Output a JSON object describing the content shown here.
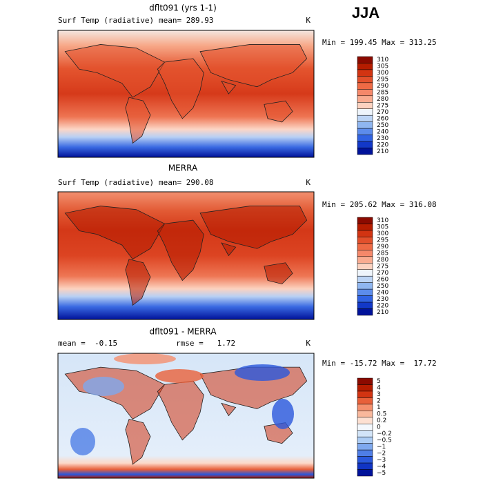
{
  "header": {
    "season": "JJA"
  },
  "panels": [
    {
      "title": "dflt091 (yrs 1-1)",
      "field": "Surf Temp (radiative)",
      "stat1": "mean= 289.93",
      "units": "K",
      "range": "Min = 199.45 Max = 313.25",
      "colorbar": {
        "labels": [
          "310",
          "305",
          "300",
          "295",
          "290",
          "285",
          "280",
          "275",
          "270",
          "260",
          "250",
          "240",
          "230",
          "220",
          "210"
        ],
        "colors": [
          "#8b0a00",
          "#b51c00",
          "#d23412",
          "#e2502c",
          "#ee6a45",
          "#f5886a",
          "#f9ab90",
          "#fcd2c0",
          "#eef4fb",
          "#bcd4f5",
          "#8fb6f0",
          "#5c8ceb",
          "#3062e2",
          "#1238c8",
          "#00129a"
        ]
      }
    },
    {
      "title": "MERRA",
      "field": "Surf Temp (radiative)",
      "stat1": "mean= 290.08",
      "units": "K",
      "range": "Min = 205.62 Max = 316.08",
      "colorbar": {
        "labels": [
          "310",
          "305",
          "300",
          "295",
          "290",
          "285",
          "280",
          "275",
          "270",
          "260",
          "250",
          "240",
          "230",
          "220",
          "210"
        ],
        "colors": [
          "#8b0a00",
          "#b51c00",
          "#d23412",
          "#e2502c",
          "#ee6a45",
          "#f5886a",
          "#f9ab90",
          "#fcd2c0",
          "#eef4fb",
          "#bcd4f5",
          "#8fb6f0",
          "#5c8ceb",
          "#3062e2",
          "#1238c8",
          "#00129a"
        ]
      }
    },
    {
      "title": "dflt091 - MERRA",
      "stat1": "mean =  -0.15",
      "stat2": "rmse =   1.72",
      "units": "K",
      "range": "Min = -15.72 Max =  17.72",
      "colorbar": {
        "labels": [
          "5",
          "4",
          "3",
          "2",
          "1",
          "0.5",
          "0.2",
          "0",
          "−0.2",
          "−0.5",
          "−1",
          "−2",
          "−3",
          "−4",
          "−5"
        ],
        "colors": [
          "#8b0a00",
          "#b51c00",
          "#d23412",
          "#e8603a",
          "#f5906e",
          "#f9b89c",
          "#fde0d2",
          "#f4f8fd",
          "#d2e4f8",
          "#acccf4",
          "#7ea8ee",
          "#4f7ee6",
          "#2a58dc",
          "#1034c4",
          "#00129a"
        ]
      }
    }
  ]
}
